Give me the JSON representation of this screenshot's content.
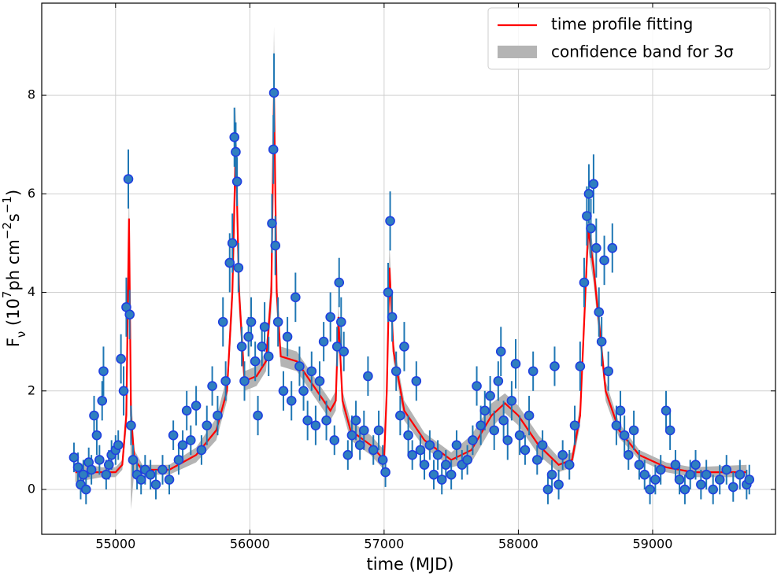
{
  "chart_data": {
    "type": "scatter",
    "xlabel": "time (MJD)",
    "ylabel": [
      "F",
      "ν",
      " (10",
      "7",
      "ph cm",
      "−2",
      "s",
      "−1",
      ")"
    ],
    "xlim": [
      54450,
      59915
    ],
    "ylim": [
      -0.91,
      9.87
    ],
    "xticks": [
      55000,
      56000,
      57000,
      58000,
      59000
    ],
    "yticks": [
      0,
      2,
      4,
      6,
      8
    ],
    "grid": true,
    "legend": "upper right",
    "data": {
      "color": "#2f7fbf",
      "edgecolor": "#1f3fe0",
      "errcolor": "#1f77b4",
      "x": [
        54690,
        54720,
        54740,
        54760,
        54780,
        54800,
        54820,
        54840,
        54860,
        54880,
        54900,
        54910,
        54930,
        54950,
        54970,
        55000,
        55020,
        55040,
        55060,
        55080,
        55095,
        55105,
        55115,
        55130,
        55160,
        55190,
        55220,
        55260,
        55300,
        55350,
        55400,
        55430,
        55470,
        55500,
        55530,
        55560,
        55600,
        55640,
        55680,
        55720,
        55760,
        55800,
        55820,
        55850,
        55870,
        55885,
        55895,
        55905,
        55915,
        55940,
        55960,
        55990,
        56010,
        56040,
        56060,
        56090,
        56110,
        56140,
        56165,
        56175,
        56180,
        56190,
        56210,
        56250,
        56280,
        56310,
        56340,
        56370,
        56400,
        56430,
        56460,
        56490,
        56520,
        56550,
        56570,
        56600,
        56630,
        56650,
        56665,
        56680,
        56700,
        56730,
        56760,
        56790,
        56820,
        56850,
        56880,
        56920,
        56960,
        56990,
        57010,
        57030,
        57045,
        57060,
        57090,
        57120,
        57150,
        57180,
        57210,
        57240,
        57270,
        57300,
        57340,
        57370,
        57400,
        57430,
        57460,
        57500,
        57540,
        57580,
        57620,
        57660,
        57690,
        57720,
        57750,
        57790,
        57820,
        57850,
        57870,
        57890,
        57920,
        57950,
        57980,
        58010,
        58050,
        58080,
        58110,
        58140,
        58180,
        58220,
        58250,
        58270,
        58300,
        58330,
        58380,
        58420,
        58460,
        58490,
        58510,
        58525,
        58540,
        58560,
        58580,
        58600,
        58620,
        58640,
        58670,
        58700,
        58730,
        58760,
        58790,
        58820,
        58860,
        58900,
        58940,
        58980,
        59020,
        59060,
        59100,
        59130,
        59170,
        59200,
        59240,
        59280,
        59320,
        59360,
        59400,
        59450,
        59500,
        59550,
        59600,
        59650,
        59700,
        59720
      ],
      "values": [
        0.65,
        0.45,
        0.1,
        0.3,
        0,
        0.55,
        0.4,
        1.5,
        1.1,
        0.6,
        1.8,
        2.4,
        0.3,
        0.5,
        0.7,
        0.8,
        0.9,
        2.65,
        2.0,
        3.7,
        6.3,
        3.55,
        1.3,
        0.6,
        0.3,
        0.2,
        0.4,
        0.3,
        0.1,
        0.4,
        0.2,
        1.1,
        0.6,
        0.9,
        1.6,
        1.0,
        1.7,
        0.8,
        1.3,
        2.1,
        1.5,
        3.4,
        2.2,
        4.6,
        5.0,
        7.15,
        6.85,
        6.25,
        4.5,
        2.9,
        2.2,
        3.1,
        3.4,
        2.6,
        1.5,
        2.9,
        3.3,
        2.7,
        5.4,
        6.9,
        8.05,
        4.95,
        3.4,
        2.0,
        3.1,
        1.8,
        3.9,
        2.5,
        2.0,
        1.4,
        2.4,
        1.3,
        2.2,
        3.0,
        1.4,
        3.5,
        1.0,
        2.9,
        4.2,
        3.4,
        2.8,
        0.7,
        1.1,
        1.4,
        0.9,
        1.2,
        2.3,
        0.8,
        1.2,
        0.6,
        0.35,
        4.0,
        5.45,
        3.5,
        2.4,
        1.5,
        2.9,
        1.1,
        0.7,
        2.2,
        0.8,
        0.5,
        0.9,
        0.3,
        0.7,
        0.2,
        0.5,
        0.3,
        0.9,
        0.5,
        0.6,
        1.0,
        2.1,
        1.3,
        1.6,
        1.9,
        1.2,
        2.2,
        2.8,
        1.4,
        1.0,
        1.8,
        2.55,
        1.1,
        0.8,
        1.5,
        2.4,
        0.6,
        0.9,
        0,
        0.3,
        2.5,
        0.1,
        0.7,
        0.5,
        1.3,
        2.5,
        4.2,
        5.55,
        6.0,
        5.3,
        6.2,
        4.9,
        3.6,
        3.0,
        4.65,
        2.4,
        4.9,
        1.3,
        1.6,
        1.1,
        0.7,
        1.2,
        0.5,
        0.3,
        0,
        0.2,
        0.4,
        1.6,
        1.2,
        0.5,
        0.2,
        0,
        0.3,
        0.5,
        0.1,
        0.3,
        0,
        0.2,
        0.4,
        0.05,
        0.3,
        0.1,
        0.2
      ],
      "errors": [
        0.3,
        0.3,
        0.3,
        0.3,
        0.3,
        0.3,
        0.3,
        0.4,
        0.4,
        0.3,
        0.4,
        0.5,
        0.3,
        0.3,
        0.3,
        0.3,
        0.3,
        0.5,
        0.5,
        0.6,
        0.6,
        0.5,
        0.4,
        0.3,
        0.3,
        0.3,
        0.3,
        0.3,
        0.3,
        0.3,
        0.3,
        0.3,
        0.3,
        0.3,
        0.4,
        0.3,
        0.4,
        0.3,
        0.4,
        0.4,
        0.4,
        0.5,
        0.4,
        0.6,
        0.6,
        0.6,
        0.6,
        0.5,
        0.5,
        0.4,
        0.4,
        0.4,
        0.5,
        0.4,
        0.4,
        0.4,
        0.5,
        0.4,
        0.6,
        0.7,
        0.8,
        0.6,
        0.5,
        0.4,
        0.4,
        0.4,
        0.5,
        0.4,
        0.4,
        0.4,
        0.4,
        0.4,
        0.4,
        0.4,
        0.4,
        0.5,
        0.3,
        0.4,
        0.5,
        0.5,
        0.4,
        0.3,
        0.4,
        0.4,
        0.3,
        0.4,
        0.4,
        0.3,
        0.4,
        0.3,
        0.3,
        0.6,
        0.6,
        0.5,
        0.4,
        0.4,
        0.5,
        0.4,
        0.3,
        0.4,
        0.3,
        0.3,
        0.3,
        0.3,
        0.3,
        0.3,
        0.3,
        0.3,
        0.3,
        0.3,
        0.3,
        0.3,
        0.4,
        0.4,
        0.4,
        0.4,
        0.4,
        0.4,
        0.5,
        0.4,
        0.4,
        0.4,
        0.5,
        0.4,
        0.3,
        0.4,
        0.4,
        0.3,
        0.3,
        0.3,
        0.3,
        0.4,
        0.3,
        0.3,
        0.3,
        0.4,
        0.5,
        0.5,
        0.6,
        0.6,
        0.6,
        0.6,
        0.6,
        0.5,
        0.5,
        0.5,
        0.4,
        0.5,
        0.4,
        0.4,
        0.4,
        0.3,
        0.4,
        0.3,
        0.3,
        0.3,
        0.3,
        0.3,
        0.4,
        0.4,
        0.3,
        0.3,
        0.3,
        0.3,
        0.3,
        0.3,
        0.3,
        0.3,
        0.3,
        0.3,
        0.3,
        0.3,
        0.3,
        0.3
      ]
    },
    "fit": {
      "name": "time profile fitting",
      "color": "#ff0000",
      "x": [
        54700,
        54900,
        55000,
        55050,
        55080,
        55100,
        55115,
        55140,
        55200,
        55400,
        55600,
        55750,
        55830,
        55870,
        55895,
        55920,
        55960,
        56050,
        56120,
        56160,
        56180,
        56200,
        56230,
        56350,
        56500,
        56600,
        56640,
        56660,
        56690,
        56750,
        56900,
        57000,
        57020,
        57040,
        57070,
        57150,
        57300,
        57500,
        57650,
        57800,
        57900,
        58000,
        58150,
        58300,
        58400,
        58460,
        58520,
        58560,
        58650,
        58750,
        58900,
        59100,
        59300,
        59700
      ],
      "values": [
        0.35,
        0.35,
        0.35,
        0.5,
        1.5,
        5.5,
        1.5,
        0.6,
        0.4,
        0.4,
        0.7,
        1.2,
        2.0,
        4.0,
        7.0,
        4.0,
        2.2,
        2.3,
        2.6,
        4.0,
        8.0,
        4.0,
        2.7,
        2.6,
        2.0,
        1.6,
        1.8,
        3.5,
        1.8,
        1.2,
        0.9,
        0.6,
        2.0,
        4.5,
        2.8,
        1.6,
        1.0,
        0.6,
        0.8,
        1.5,
        1.75,
        1.5,
        0.9,
        0.5,
        0.6,
        1.5,
        5.3,
        4.5,
        2.0,
        1.2,
        0.7,
        0.45,
        0.35,
        0.35
      ]
    },
    "band": {
      "name": "confidence band for 3σ",
      "color": "#b4b4b4",
      "lower": [
        0.15,
        0.25,
        0.25,
        0.4,
        1.2,
        5.1,
        -0.4,
        0.4,
        0.3,
        0.3,
        0.55,
        1.0,
        1.8,
        3.6,
        6.5,
        3.6,
        2.0,
        2.1,
        2.4,
        3.6,
        7.4,
        3.6,
        2.5,
        2.4,
        1.8,
        1.4,
        1.6,
        3.2,
        1.6,
        1.0,
        0.7,
        0.4,
        1.7,
        4.1,
        2.6,
        1.4,
        0.85,
        0.45,
        0.55,
        1.25,
        1.55,
        1.3,
        0.7,
        0.35,
        0.45,
        1.3,
        4.9,
        4.2,
        1.8,
        1.05,
        0.6,
        0.35,
        0.25,
        0.25
      ],
      "upper": [
        0.55,
        0.45,
        0.45,
        0.6,
        1.8,
        6.2,
        2.0,
        0.8,
        0.5,
        0.5,
        0.85,
        1.45,
        2.3,
        4.4,
        7.8,
        4.4,
        2.4,
        2.5,
        2.8,
        4.4,
        9.4,
        4.4,
        2.9,
        2.8,
        2.2,
        1.8,
        2.0,
        3.8,
        2.0,
        1.4,
        1.1,
        0.8,
        2.3,
        5.0,
        3.0,
        1.8,
        1.15,
        0.75,
        1.1,
        1.75,
        1.95,
        1.7,
        1.1,
        0.65,
        0.75,
        1.7,
        5.7,
        4.8,
        2.2,
        1.35,
        0.8,
        0.55,
        0.45,
        0.5
      ]
    }
  }
}
